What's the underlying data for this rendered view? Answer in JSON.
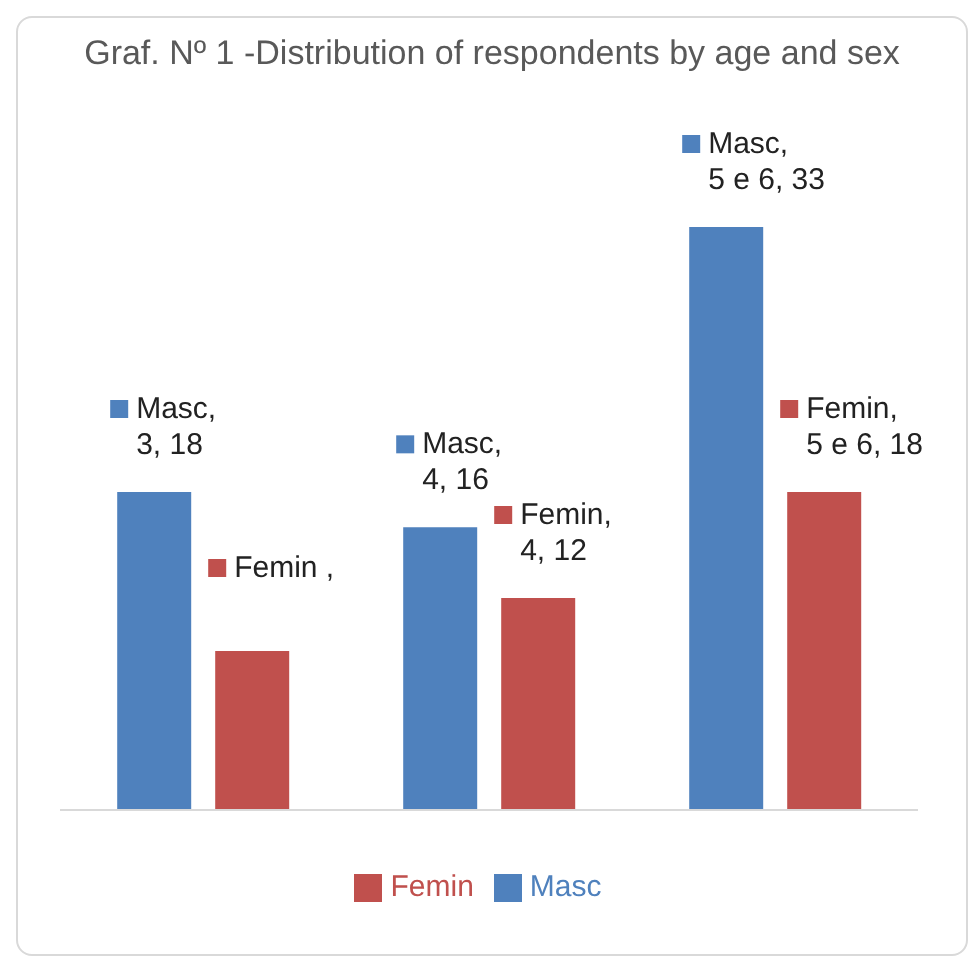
{
  "chart_data": {
    "type": "bar",
    "title": "Graf. Nº 1 -Distribution of respondents by age and sex",
    "categories": [
      null,
      null,
      null
    ],
    "series": [
      {
        "name": "Masc",
        "color": "#4f81bd",
        "values": [
          18,
          16,
          33
        ],
        "value_labels": [
          "Masc, 3, 18",
          "Masc, 4, 16",
          "Masc, 5 e 6, 33"
        ]
      },
      {
        "name": "Femin",
        "color": "#c0504d",
        "values": [
          9,
          12,
          18
        ],
        "value_labels": [
          "Femin ,",
          "Femin, 4, 12",
          "Femin, 5 e 6, 18"
        ]
      }
    ],
    "legend": "bottom"
  }
}
